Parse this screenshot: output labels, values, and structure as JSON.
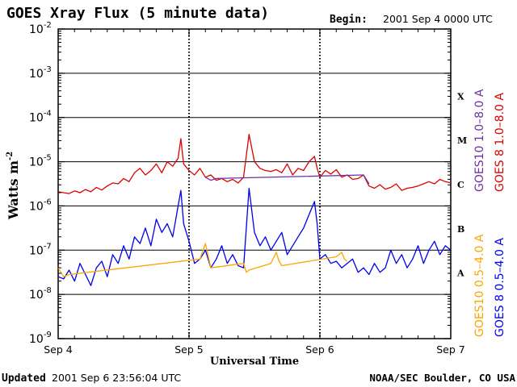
{
  "header": {
    "title": "GOES Xray Flux (5 minute data)",
    "begin_label": "Begin:",
    "begin_value": "2001 Sep 4 0000 UTC"
  },
  "footer": {
    "updated_label": "Updated",
    "updated_value": "2001 Sep  6 23:56:04 UTC",
    "credit": "NOAA/SEC Boulder, CO USA"
  },
  "colors": {
    "goes10_long": "#7030a0",
    "goes8_long": "#dd0000",
    "goes10_short": "#ffa500",
    "goes8_short": "#0000ee",
    "frame": "#000000"
  },
  "chart_data": {
    "type": "line",
    "title": "GOES Xray Flux (5 minute data)",
    "xlabel": "Universal Time",
    "ylabel": "Watts m",
    "ylabel_sup": "-2",
    "xlim": [
      0,
      72
    ],
    "x_unit": "hours since 2001 Sep 4 0000 UTC",
    "x_ticks": [
      {
        "x": 0,
        "label": "Sep 4"
      },
      {
        "x": 24,
        "label": "Sep 5"
      },
      {
        "x": 48,
        "label": "Sep 6"
      },
      {
        "x": 72,
        "label": "Sep 7"
      }
    ],
    "ylim_log10": [
      -9,
      -2
    ],
    "y_ticks": [
      {
        "exp": -2,
        "base": "10",
        "sup": "-2"
      },
      {
        "exp": -3,
        "base": "10",
        "sup": "-3"
      },
      {
        "exp": -4,
        "base": "10",
        "sup": "-4"
      },
      {
        "exp": -5,
        "base": "10",
        "sup": "-5"
      },
      {
        "exp": -6,
        "base": "10",
        "sup": "-6"
      },
      {
        "exp": -7,
        "base": "10",
        "sup": "-7"
      },
      {
        "exp": -8,
        "base": "10",
        "sup": "-8"
      },
      {
        "exp": -9,
        "base": "10",
        "sup": "-9"
      }
    ],
    "flare_classes": [
      {
        "label": "X",
        "exp": -3.5
      },
      {
        "label": "M",
        "exp": -4.5
      },
      {
        "label": "C",
        "exp": -5.5
      },
      {
        "label": "B",
        "exp": -6.5
      },
      {
        "label": "A",
        "exp": -7.5
      }
    ],
    "grid": "horizontal lines at each decade, dotted day dividers",
    "legend": [
      {
        "text": "GOES10 1.0–8.0 A",
        "color_key": "goes10_long",
        "group": "long"
      },
      {
        "text": "GOES 8 1.0–8.0 A",
        "color_key": "goes8_long",
        "group": "long"
      },
      {
        "text": "GOES10 0.5–4.0 A",
        "color_key": "goes10_short",
        "group": "short"
      },
      {
        "text": "GOES 8 0.5–4.0 A",
        "color_key": "goes8_short",
        "group": "short"
      }
    ],
    "series": [
      {
        "name": "GOES 8 1.0-8.0 A",
        "color_key": "goes8_long",
        "x": [
          0,
          1,
          2,
          3,
          4,
          5,
          6,
          7,
          8,
          9,
          10,
          11,
          12,
          13,
          14,
          15,
          16,
          17,
          18,
          19,
          20,
          21,
          22,
          22.5,
          23,
          24,
          25,
          26,
          27,
          28,
          29,
          30,
          31,
          32,
          33,
          34,
          35,
          36,
          37,
          38,
          39,
          40,
          41,
          42,
          43,
          44,
          45,
          46,
          47,
          47.5,
          48,
          49,
          50,
          51,
          52,
          53,
          54,
          55,
          56,
          57,
          58,
          59,
          60,
          61,
          62,
          63,
          64,
          65,
          66,
          67,
          68,
          69,
          70,
          71,
          72
        ],
        "log10": [
          -5.68,
          -5.7,
          -5.72,
          -5.66,
          -5.7,
          -5.63,
          -5.68,
          -5.58,
          -5.64,
          -5.55,
          -5.48,
          -5.5,
          -5.38,
          -5.45,
          -5.25,
          -5.15,
          -5.3,
          -5.2,
          -5.05,
          -5.25,
          -5.0,
          -5.1,
          -4.92,
          -4.48,
          -5.05,
          -5.2,
          -5.3,
          -5.15,
          -5.35,
          -5.3,
          -5.42,
          -5.38,
          -5.45,
          -5.4,
          -5.48,
          -5.35,
          -4.38,
          -5.0,
          -5.15,
          -5.2,
          -5.22,
          -5.18,
          -5.25,
          -5.05,
          -5.3,
          -5.15,
          -5.2,
          -5.0,
          -4.88,
          -5.15,
          -5.35,
          -5.2,
          -5.28,
          -5.18,
          -5.35,
          -5.3,
          -5.4,
          -5.38,
          -5.3,
          -5.55,
          -5.6,
          -5.52,
          -5.62,
          -5.58,
          -5.5,
          -5.65,
          -5.6,
          -5.58,
          -5.55,
          -5.5,
          -5.45,
          -5.5,
          -5.4,
          -5.45,
          -5.48
        ]
      },
      {
        "name": "GOES 8 0.5-4.0 A",
        "color_key": "goes8_short",
        "x": [
          0,
          1,
          2,
          3,
          4,
          5,
          6,
          7,
          8,
          9,
          10,
          11,
          12,
          13,
          14,
          15,
          16,
          17,
          18,
          19,
          20,
          21,
          22,
          22.5,
          23,
          24,
          25,
          26,
          27,
          28,
          29,
          30,
          31,
          32,
          33,
          34,
          35,
          36,
          37,
          38,
          39,
          40,
          41,
          42,
          43,
          44,
          45,
          46,
          47,
          47.5,
          48,
          49,
          50,
          51,
          52,
          53,
          54,
          55,
          56,
          57,
          58,
          59,
          60,
          61,
          62,
          63,
          64,
          65,
          66,
          67,
          68,
          69,
          70,
          71,
          72
        ],
        "log10": [
          -7.6,
          -7.65,
          -7.45,
          -7.7,
          -7.3,
          -7.55,
          -7.8,
          -7.4,
          -7.25,
          -7.6,
          -7.1,
          -7.3,
          -6.9,
          -7.2,
          -6.7,
          -6.85,
          -6.5,
          -6.9,
          -6.3,
          -6.6,
          -6.4,
          -6.7,
          -6.0,
          -5.65,
          -6.4,
          -6.8,
          -7.3,
          -7.2,
          -7.0,
          -7.4,
          -7.2,
          -6.9,
          -7.3,
          -7.1,
          -7.35,
          -7.4,
          -5.6,
          -6.6,
          -6.9,
          -6.7,
          -7.0,
          -6.8,
          -6.6,
          -7.1,
          -6.9,
          -6.7,
          -6.5,
          -6.2,
          -5.9,
          -6.4,
          -7.2,
          -7.1,
          -7.3,
          -7.25,
          -7.4,
          -7.3,
          -7.2,
          -7.5,
          -7.4,
          -7.55,
          -7.3,
          -7.5,
          -7.4,
          -7.0,
          -7.3,
          -7.1,
          -7.4,
          -7.2,
          -6.9,
          -7.3,
          -7.0,
          -6.8,
          -7.1,
          -6.9,
          -7.0
        ]
      },
      {
        "name": "GOES10 0.5-4.0 A",
        "color_key": "goes10_short",
        "x": [
          0,
          1,
          2,
          26,
          27,
          28,
          34,
          34.5,
          35,
          39,
          40,
          40.5,
          41,
          51,
          52,
          52.5,
          53
        ],
        "log10": [
          -7.4,
          -7.6,
          -7.55,
          -7.2,
          -6.85,
          -7.4,
          -7.3,
          -7.5,
          -7.45,
          -7.3,
          -7.05,
          -7.25,
          -7.35,
          -7.15,
          -7.05,
          -7.2,
          -7.25
        ]
      },
      {
        "name": "GOES10 1.0-8.0 A",
        "color_key": "goes10_long",
        "x": [
          27,
          28,
          29,
          56,
          57
        ],
        "log10": [
          -5.35,
          -5.42,
          -5.38,
          -5.3,
          -5.5
        ]
      }
    ]
  }
}
